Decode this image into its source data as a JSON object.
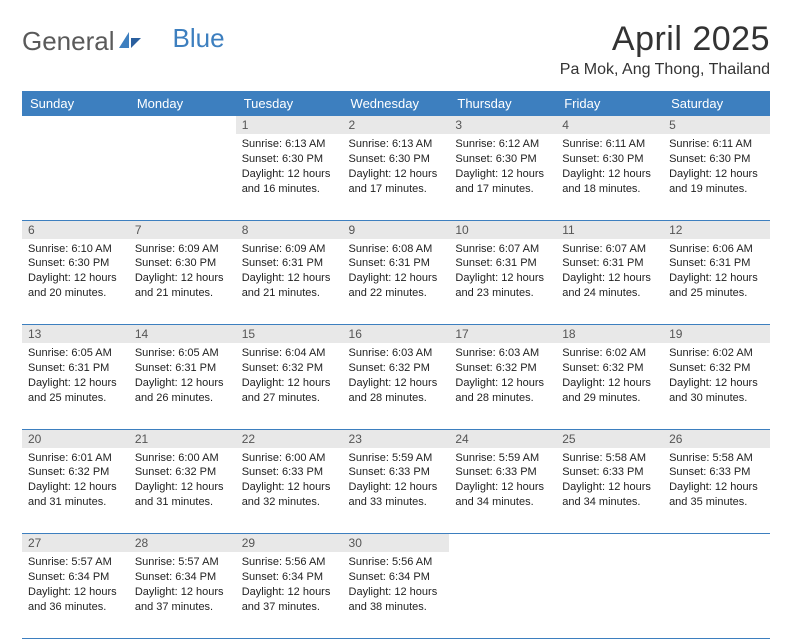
{
  "logo": {
    "text_gray": "General",
    "text_blue": "Blue"
  },
  "title": "April 2025",
  "location": "Pa Mok, Ang Thong, Thailand",
  "colors": {
    "header_bg": "#3d7fbf",
    "header_fg": "#ffffff",
    "daynum_bg": "#e8e8e8",
    "daynum_fg": "#555555",
    "border": "#3d7fbf",
    "page_bg": "#ffffff",
    "logo_gray": "#5a5a5a",
    "logo_blue": "#3d7fbf"
  },
  "weekdays": [
    "Sunday",
    "Monday",
    "Tuesday",
    "Wednesday",
    "Thursday",
    "Friday",
    "Saturday"
  ],
  "weeks": [
    [
      {
        "day": "",
        "sunrise": "",
        "sunset": "",
        "daylight": ""
      },
      {
        "day": "",
        "sunrise": "",
        "sunset": "",
        "daylight": ""
      },
      {
        "day": "1",
        "sunrise": "Sunrise: 6:13 AM",
        "sunset": "Sunset: 6:30 PM",
        "daylight": "Daylight: 12 hours and 16 minutes."
      },
      {
        "day": "2",
        "sunrise": "Sunrise: 6:13 AM",
        "sunset": "Sunset: 6:30 PM",
        "daylight": "Daylight: 12 hours and 17 minutes."
      },
      {
        "day": "3",
        "sunrise": "Sunrise: 6:12 AM",
        "sunset": "Sunset: 6:30 PM",
        "daylight": "Daylight: 12 hours and 17 minutes."
      },
      {
        "day": "4",
        "sunrise": "Sunrise: 6:11 AM",
        "sunset": "Sunset: 6:30 PM",
        "daylight": "Daylight: 12 hours and 18 minutes."
      },
      {
        "day": "5",
        "sunrise": "Sunrise: 6:11 AM",
        "sunset": "Sunset: 6:30 PM",
        "daylight": "Daylight: 12 hours and 19 minutes."
      }
    ],
    [
      {
        "day": "6",
        "sunrise": "Sunrise: 6:10 AM",
        "sunset": "Sunset: 6:30 PM",
        "daylight": "Daylight: 12 hours and 20 minutes."
      },
      {
        "day": "7",
        "sunrise": "Sunrise: 6:09 AM",
        "sunset": "Sunset: 6:30 PM",
        "daylight": "Daylight: 12 hours and 21 minutes."
      },
      {
        "day": "8",
        "sunrise": "Sunrise: 6:09 AM",
        "sunset": "Sunset: 6:31 PM",
        "daylight": "Daylight: 12 hours and 21 minutes."
      },
      {
        "day": "9",
        "sunrise": "Sunrise: 6:08 AM",
        "sunset": "Sunset: 6:31 PM",
        "daylight": "Daylight: 12 hours and 22 minutes."
      },
      {
        "day": "10",
        "sunrise": "Sunrise: 6:07 AM",
        "sunset": "Sunset: 6:31 PM",
        "daylight": "Daylight: 12 hours and 23 minutes."
      },
      {
        "day": "11",
        "sunrise": "Sunrise: 6:07 AM",
        "sunset": "Sunset: 6:31 PM",
        "daylight": "Daylight: 12 hours and 24 minutes."
      },
      {
        "day": "12",
        "sunrise": "Sunrise: 6:06 AM",
        "sunset": "Sunset: 6:31 PM",
        "daylight": "Daylight: 12 hours and 25 minutes."
      }
    ],
    [
      {
        "day": "13",
        "sunrise": "Sunrise: 6:05 AM",
        "sunset": "Sunset: 6:31 PM",
        "daylight": "Daylight: 12 hours and 25 minutes."
      },
      {
        "day": "14",
        "sunrise": "Sunrise: 6:05 AM",
        "sunset": "Sunset: 6:31 PM",
        "daylight": "Daylight: 12 hours and 26 minutes."
      },
      {
        "day": "15",
        "sunrise": "Sunrise: 6:04 AM",
        "sunset": "Sunset: 6:32 PM",
        "daylight": "Daylight: 12 hours and 27 minutes."
      },
      {
        "day": "16",
        "sunrise": "Sunrise: 6:03 AM",
        "sunset": "Sunset: 6:32 PM",
        "daylight": "Daylight: 12 hours and 28 minutes."
      },
      {
        "day": "17",
        "sunrise": "Sunrise: 6:03 AM",
        "sunset": "Sunset: 6:32 PM",
        "daylight": "Daylight: 12 hours and 28 minutes."
      },
      {
        "day": "18",
        "sunrise": "Sunrise: 6:02 AM",
        "sunset": "Sunset: 6:32 PM",
        "daylight": "Daylight: 12 hours and 29 minutes."
      },
      {
        "day": "19",
        "sunrise": "Sunrise: 6:02 AM",
        "sunset": "Sunset: 6:32 PM",
        "daylight": "Daylight: 12 hours and 30 minutes."
      }
    ],
    [
      {
        "day": "20",
        "sunrise": "Sunrise: 6:01 AM",
        "sunset": "Sunset: 6:32 PM",
        "daylight": "Daylight: 12 hours and 31 minutes."
      },
      {
        "day": "21",
        "sunrise": "Sunrise: 6:00 AM",
        "sunset": "Sunset: 6:32 PM",
        "daylight": "Daylight: 12 hours and 31 minutes."
      },
      {
        "day": "22",
        "sunrise": "Sunrise: 6:00 AM",
        "sunset": "Sunset: 6:33 PM",
        "daylight": "Daylight: 12 hours and 32 minutes."
      },
      {
        "day": "23",
        "sunrise": "Sunrise: 5:59 AM",
        "sunset": "Sunset: 6:33 PM",
        "daylight": "Daylight: 12 hours and 33 minutes."
      },
      {
        "day": "24",
        "sunrise": "Sunrise: 5:59 AM",
        "sunset": "Sunset: 6:33 PM",
        "daylight": "Daylight: 12 hours and 34 minutes."
      },
      {
        "day": "25",
        "sunrise": "Sunrise: 5:58 AM",
        "sunset": "Sunset: 6:33 PM",
        "daylight": "Daylight: 12 hours and 34 minutes."
      },
      {
        "day": "26",
        "sunrise": "Sunrise: 5:58 AM",
        "sunset": "Sunset: 6:33 PM",
        "daylight": "Daylight: 12 hours and 35 minutes."
      }
    ],
    [
      {
        "day": "27",
        "sunrise": "Sunrise: 5:57 AM",
        "sunset": "Sunset: 6:34 PM",
        "daylight": "Daylight: 12 hours and 36 minutes."
      },
      {
        "day": "28",
        "sunrise": "Sunrise: 5:57 AM",
        "sunset": "Sunset: 6:34 PM",
        "daylight": "Daylight: 12 hours and 37 minutes."
      },
      {
        "day": "29",
        "sunrise": "Sunrise: 5:56 AM",
        "sunset": "Sunset: 6:34 PM",
        "daylight": "Daylight: 12 hours and 37 minutes."
      },
      {
        "day": "30",
        "sunrise": "Sunrise: 5:56 AM",
        "sunset": "Sunset: 6:34 PM",
        "daylight": "Daylight: 12 hours and 38 minutes."
      },
      {
        "day": "",
        "sunrise": "",
        "sunset": "",
        "daylight": ""
      },
      {
        "day": "",
        "sunrise": "",
        "sunset": "",
        "daylight": ""
      },
      {
        "day": "",
        "sunrise": "",
        "sunset": "",
        "daylight": ""
      }
    ]
  ]
}
